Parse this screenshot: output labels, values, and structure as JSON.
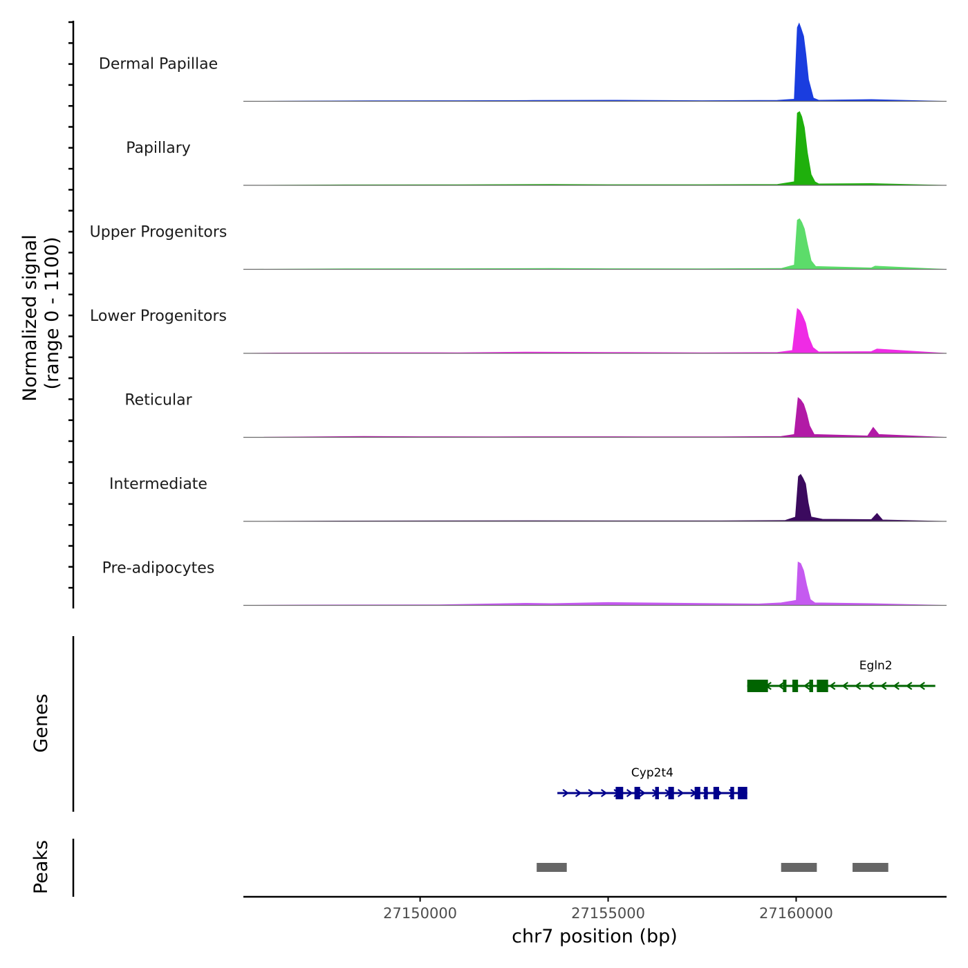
{
  "chart_data": {
    "type": "area",
    "title": "",
    "xlabel": "chr7 position (bp)",
    "ylabel": "Normalized signal\n(range 0 - 1100)",
    "y_range": [
      0,
      1100
    ],
    "xlim": [
      27145300,
      27164000
    ],
    "x_ticks": [
      {
        "value": 27150000,
        "label": "27150000"
      },
      {
        "value": 27155000,
        "label": "27155000"
      },
      {
        "value": 27160000,
        "label": "27160000"
      }
    ],
    "tracks": [
      {
        "name": "Dermal Papillae",
        "color": "#1a3ddf",
        "x": [
          27145300,
          27147000,
          27148700,
          27151000,
          27153000,
          27155200,
          27157500,
          27159500,
          27159950,
          27160030,
          27160080,
          27160130,
          27160200,
          27160260,
          27160330,
          27160460,
          27160600,
          27162000,
          27164000
        ],
        "values": [
          0,
          5,
          9,
          10,
          12,
          15,
          10,
          14,
          30,
          1020,
          1080,
          1010,
          900,
          650,
          300,
          45,
          15,
          25,
          0
        ]
      },
      {
        "name": "Papillary",
        "color": "#1fb00c",
        "x": [
          27145300,
          27148000,
          27151000,
          27153500,
          27155000,
          27157500,
          27159500,
          27159950,
          27160030,
          27160090,
          27160150,
          27160220,
          27160300,
          27160400,
          27160500,
          27160600,
          27162000,
          27164000
        ],
        "values": [
          0,
          7,
          9,
          12,
          10,
          10,
          12,
          50,
          1000,
          1020,
          950,
          800,
          450,
          150,
          50,
          20,
          25,
          0
        ]
      },
      {
        "name": "Upper Progenitors",
        "color": "#5cdc6a",
        "x": [
          27145300,
          27148000,
          27151000,
          27153500,
          27155000,
          27157500,
          27159600,
          27159950,
          27160030,
          27160090,
          27160150,
          27160220,
          27160300,
          27160400,
          27160520,
          27162000,
          27162100,
          27164000
        ],
        "values": [
          0,
          8,
          10,
          12,
          10,
          9,
          12,
          60,
          680,
          700,
          650,
          560,
          350,
          120,
          40,
          20,
          45,
          0
        ]
      },
      {
        "name": "Lower Progenitors",
        "color": "#ef2be5",
        "x": [
          27145300,
          27146200,
          27148500,
          27151000,
          27152800,
          27155500,
          27157500,
          27159500,
          27159900,
          27160030,
          27160100,
          27160170,
          27160250,
          27160330,
          27160450,
          27160600,
          27162000,
          27162150,
          27164000
        ],
        "values": [
          0,
          6,
          10,
          9,
          18,
          12,
          9,
          12,
          40,
          620,
          590,
          520,
          420,
          230,
          80,
          20,
          25,
          60,
          0
        ]
      },
      {
        "name": "Reticular",
        "color": "#b21aa6",
        "x": [
          27145300,
          27148500,
          27150000,
          27152000,
          27154000,
          27156000,
          27158000,
          27159600,
          27159950,
          27160050,
          27160120,
          27160200,
          27160280,
          27160360,
          27160480,
          27161900,
          27162050,
          27162200,
          27164000
        ],
        "values": [
          0,
          12,
          10,
          9,
          10,
          9,
          8,
          12,
          40,
          550,
          520,
          460,
          330,
          160,
          40,
          20,
          140,
          40,
          0
        ]
      },
      {
        "name": "Intermediate",
        "color": "#3b0a5e",
        "x": [
          27145300,
          27148000,
          27150500,
          27153000,
          27155500,
          27158000,
          27159700,
          27159980,
          27160060,
          27160120,
          27160180,
          27160250,
          27160320,
          27160400,
          27160700,
          27162000,
          27162150,
          27162300,
          27164000
        ],
        "values": [
          0,
          6,
          8,
          10,
          8,
          9,
          12,
          60,
          620,
          650,
          600,
          520,
          260,
          60,
          30,
          25,
          110,
          20,
          0
        ]
      },
      {
        "name": "Pre-adipocytes",
        "color": "#c55af0",
        "x": [
          27145300,
          27147000,
          27150500,
          27152800,
          27153500,
          27155000,
          27157500,
          27159000,
          27159600,
          27160000,
          27160050,
          27160120,
          27160200,
          27160280,
          27160380,
          27160500,
          27162000,
          27164000
        ],
        "values": [
          0,
          6,
          8,
          30,
          25,
          40,
          28,
          20,
          35,
          70,
          600,
          580,
          480,
          280,
          80,
          35,
          25,
          0
        ]
      }
    ],
    "genes": [
      {
        "name": "Egln2",
        "start": 27158700,
        "end": 27163700,
        "strand": "-",
        "color": "#006400",
        "exons": [
          [
            27158700,
            27159250
          ],
          [
            27159650,
            27159700
          ],
          [
            27159900,
            27160050
          ],
          [
            27160350,
            27160450
          ],
          [
            27160550,
            27160850
          ]
        ]
      },
      {
        "name": "Cyp2t4",
        "start": 27153650,
        "end": 27158700,
        "strand": "+",
        "color": "#00008b",
        "exons": [
          [
            27155200,
            27155400
          ],
          [
            27155700,
            27155850
          ],
          [
            27156250,
            27156350
          ],
          [
            27156600,
            27156750
          ],
          [
            27157300,
            27157450
          ],
          [
            27157550,
            27157650
          ],
          [
            27157800,
            27157950
          ],
          [
            27158250,
            27158350
          ],
          [
            27158450,
            27158700
          ]
        ]
      }
    ],
    "peaks": [
      {
        "start": 27153100,
        "end": 27153900
      },
      {
        "start": 27159600,
        "end": 27160550
      },
      {
        "start": 27161500,
        "end": 27162450
      }
    ],
    "panels": {
      "signal_ylabel_line1": "Normalized signal",
      "signal_ylabel_line2": "(range 0 - 1100)",
      "genes_label": "Genes",
      "peaks_label": "Peaks"
    }
  }
}
